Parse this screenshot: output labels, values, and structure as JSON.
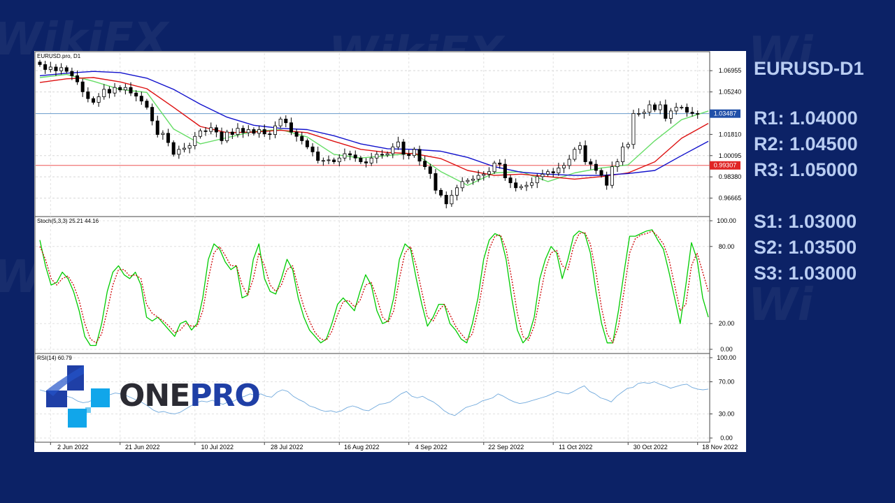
{
  "app": {
    "symbol_title": "EURUSD-D1",
    "brand": {
      "part1": "ONE",
      "part2": "PRO"
    }
  },
  "levels": {
    "R1": "R1: 1.04000",
    "R2": "R2: 1.04500",
    "R3": "R3: 1.05000",
    "S1": "S1: 1.03000",
    "S2": "S2: 1.03500",
    "S3": "S3: 1.03000"
  },
  "colors": {
    "background": "#0c2266",
    "bull_candle": "#ffffff",
    "bear_candle": "#000000",
    "ma_fast": "#66dd66",
    "ma_mid": "#dd1111",
    "ma_slow": "#1111cc",
    "stoch_main": "#00cc00",
    "stoch_signal": "#cc0000",
    "rsi": "#6fa8dc",
    "price_line": "#6699cc",
    "support_line": "#ee5555"
  },
  "chart_data": [
    {
      "type": "candlestick",
      "title": "EURUSD.pro, D1",
      "price_ticks": [
        "1.06955",
        "1.05240",
        "1.01810",
        "1.00095",
        "0.98380",
        "0.96665"
      ],
      "ylim": [
        0.954,
        1.0815
      ],
      "current_price": {
        "value": 1.03487,
        "label": "1.03487"
      },
      "horizontal_line": {
        "value": 0.99307,
        "label": "0.99307"
      },
      "date_ticks": [
        "2 Jun 2022",
        "21 Jun 2022",
        "10 Jul 2022",
        "28 Jul 2022",
        "16 Aug 2022",
        "4 Sep 2022",
        "22 Sep 2022",
        "11 Oct 2022",
        "30 Oct 2022",
        "18 Nov 2022"
      ],
      "date_tick_positions": [
        2,
        15,
        29,
        42,
        56,
        69,
        83,
        96,
        110,
        123
      ],
      "closes": [
        1.0745,
        1.0705,
        1.0725,
        1.0695,
        1.072,
        1.069,
        1.0655,
        1.0605,
        1.0525,
        1.047,
        1.044,
        1.0485,
        1.0545,
        1.0515,
        1.056,
        1.054,
        1.056,
        1.0515,
        1.049,
        1.045,
        1.04,
        1.029,
        1.018,
        1.019,
        1.0115,
        1.002,
        1.006,
        1.007,
        1.009,
        1.0165,
        1.021,
        1.0205,
        1.0235,
        1.02,
        1.013,
        1.02,
        1.018,
        1.023,
        1.0195,
        1.022,
        1.019,
        1.022,
        1.0185,
        1.018,
        1.025,
        1.0305,
        1.0275,
        1.02,
        1.0165,
        1.013,
        1.008,
        1.004,
        0.997,
        0.997,
        0.9975,
        0.996,
        0.999,
        1.0025,
        1.0015,
        0.999,
        0.996,
        0.995,
        0.999,
        1.002,
        1.0015,
        1.0025,
        1.008,
        1.012,
        1.002,
        1.001,
        1.006,
        0.9965,
        0.992,
        0.9865,
        0.973,
        0.969,
        0.962,
        0.969,
        0.975,
        0.98,
        0.981,
        0.982,
        0.985,
        0.986,
        0.988,
        0.995,
        0.994,
        0.983,
        0.979,
        0.975,
        0.976,
        0.977,
        0.979,
        0.984,
        0.986,
        0.988,
        0.987,
        0.991,
        0.993,
        0.998,
        1.006,
        1.009,
        0.996,
        0.994,
        0.989,
        0.985,
        0.977,
        0.992,
        0.996,
        1.008,
        1.01,
        1.035,
        1.035,
        1.036,
        1.042,
        1.038,
        1.042,
        1.031,
        1.037,
        1.04,
        1.04,
        1.036,
        1.035,
        1.0349
      ],
      "moving_averages": [
        {
          "color": "#66dd66",
          "points": [
            [
              0,
              1.064
            ],
            [
              5,
              1.0665
            ],
            [
              10,
              1.061
            ],
            [
              15,
              1.0545
            ],
            [
              20,
              1.052
            ],
            [
              25,
              1.0225
            ],
            [
              30,
              1.0105
            ],
            [
              35,
              1.0155
            ],
            [
              40,
              1.0205
            ],
            [
              45,
              1.022
            ],
            [
              50,
              1.016
            ],
            [
              55,
              1.002
            ],
            [
              60,
              0.999
            ],
            [
              65,
              1.001
            ],
            [
              70,
              1.003
            ],
            [
              75,
              0.988
            ],
            [
              80,
              0.977
            ],
            [
              85,
              0.987
            ],
            [
              90,
              0.988
            ],
            [
              95,
              0.98
            ],
            [
              100,
              0.987
            ],
            [
              105,
              0.991
            ],
            [
              110,
              0.9935
            ],
            [
              115,
              1.013
            ],
            [
              120,
              1.03
            ],
            [
              125,
              1.037
            ]
          ]
        },
        {
          "color": "#dd1111",
          "points": [
            [
              0,
              1.06
            ],
            [
              5,
              1.063
            ],
            [
              10,
              1.064
            ],
            [
              15,
              1.0605
            ],
            [
              20,
              1.055
            ],
            [
              25,
              1.04
            ],
            [
              30,
              1.0245
            ],
            [
              35,
              1.0195
            ],
            [
              40,
              1.02
            ],
            [
              45,
              1.0215
            ],
            [
              50,
              1.0195
            ],
            [
              55,
              1.0125
            ],
            [
              60,
              1.006
            ],
            [
              65,
              1.0035
            ],
            [
              70,
              1.0025
            ],
            [
              75,
              0.9985
            ],
            [
              80,
              0.989
            ],
            [
              85,
              0.985
            ],
            [
              90,
              0.986
            ],
            [
              95,
              0.984
            ],
            [
              100,
              0.982
            ],
            [
              105,
              0.984
            ],
            [
              110,
              0.987
            ],
            [
              115,
              0.996
            ],
            [
              120,
              1.015
            ],
            [
              125,
              1.027
            ]
          ]
        },
        {
          "color": "#1111cc",
          "points": [
            [
              0,
              1.0655
            ],
            [
              5,
              1.0675
            ],
            [
              10,
              1.069
            ],
            [
              15,
              1.068
            ],
            [
              20,
              1.0635
            ],
            [
              25,
              1.0545
            ],
            [
              30,
              1.0425
            ],
            [
              35,
              1.032
            ],
            [
              40,
              1.0255
            ],
            [
              45,
              1.023
            ],
            [
              50,
              1.022
            ],
            [
              55,
              1.017
            ],
            [
              60,
              1.0105
            ],
            [
              65,
              1.0065
            ],
            [
              70,
              1.006
            ],
            [
              75,
              1.0045
            ],
            [
              80,
              0.9995
            ],
            [
              85,
              0.992
            ],
            [
              90,
              0.9875
            ],
            [
              95,
              0.986
            ],
            [
              100,
              0.985
            ],
            [
              105,
              0.985
            ],
            [
              110,
              0.9865
            ],
            [
              115,
              0.989
            ],
            [
              120,
              1.001
            ],
            [
              125,
              1.0125
            ]
          ]
        }
      ]
    },
    {
      "type": "line",
      "title": "Stoch(5,3,3) 25.21 44.16",
      "ylim": [
        0,
        100
      ],
      "y_ticks": [
        "100.00",
        "80.00",
        "20.00",
        "0.00"
      ],
      "series": [
        {
          "color": "#00cc00",
          "values": [
            85,
            65,
            50,
            52,
            60,
            55,
            45,
            30,
            10,
            3,
            3,
            20,
            45,
            60,
            65,
            58,
            55,
            60,
            50,
            25,
            22,
            25,
            20,
            15,
            10,
            20,
            22,
            15,
            20,
            40,
            70,
            82,
            78,
            68,
            62,
            65,
            40,
            42,
            70,
            82,
            55,
            45,
            43,
            55,
            70,
            62,
            40,
            25,
            15,
            10,
            5,
            8,
            20,
            35,
            40,
            35,
            30,
            45,
            58,
            50,
            30,
            20,
            22,
            40,
            70,
            82,
            78,
            55,
            35,
            18,
            25,
            35,
            35,
            20,
            15,
            8,
            5,
            20,
            40,
            70,
            85,
            90,
            88,
            70,
            40,
            15,
            5,
            10,
            25,
            55,
            70,
            80,
            75,
            55,
            70,
            88,
            92,
            90,
            75,
            45,
            20,
            5,
            5,
            30,
            60,
            88,
            88,
            90,
            92,
            93,
            85,
            78,
            60,
            40,
            20,
            50,
            83,
            70,
            40,
            25
          ]
        },
        {
          "color": "#cc0000",
          "values": [
            80,
            70,
            55,
            50,
            55,
            57,
            50,
            38,
            20,
            8,
            5,
            12,
            30,
            50,
            62,
            62,
            57,
            58,
            55,
            35,
            28,
            25,
            22,
            18,
            13,
            15,
            20,
            18,
            18,
            30,
            55,
            75,
            80,
            73,
            65,
            65,
            50,
            42,
            55,
            75,
            65,
            50,
            45,
            50,
            62,
            65,
            48,
            33,
            22,
            13,
            8,
            7,
            14,
            27,
            37,
            38,
            33,
            38,
            50,
            52,
            40,
            25,
            21,
            30,
            55,
            75,
            80,
            65,
            45,
            25,
            22,
            30,
            35,
            27,
            18,
            12,
            7,
            12,
            30,
            55,
            78,
            88,
            89,
            78,
            55,
            28,
            10,
            7,
            18,
            40,
            62,
            75,
            77,
            65,
            62,
            80,
            90,
            91,
            82,
            60,
            32,
            12,
            5,
            18,
            45,
            75,
            86,
            89,
            90,
            92,
            88,
            82,
            70,
            50,
            30,
            35,
            65,
            75,
            60,
            45
          ]
        }
      ]
    },
    {
      "type": "line",
      "title": "RSI(14) 60.79",
      "ylim": [
        0,
        100
      ],
      "y_ticks": [
        "100.00",
        "70.00",
        "30.00",
        "0.00"
      ],
      "series": [
        {
          "color": "#6fa8dc",
          "values": [
            60,
            58,
            55,
            57,
            54,
            52,
            50,
            46,
            44,
            45,
            48,
            52,
            55,
            54,
            56,
            55,
            53,
            50,
            47,
            44,
            40,
            35,
            32,
            33,
            31,
            30,
            32,
            36,
            40,
            44,
            46,
            45,
            47,
            44,
            42,
            45,
            46,
            50,
            52,
            55,
            53,
            55,
            52,
            51,
            57,
            60,
            58,
            52,
            48,
            45,
            40,
            38,
            35,
            33,
            34,
            32,
            34,
            38,
            40,
            38,
            35,
            34,
            38,
            42,
            43,
            45,
            50,
            55,
            58,
            52,
            50,
            52,
            48,
            45,
            40,
            34,
            30,
            28,
            33,
            38,
            40,
            42,
            46,
            48,
            50,
            55,
            52,
            48,
            45,
            43,
            44,
            46,
            48,
            50,
            52,
            55,
            58,
            56,
            55,
            58,
            62,
            65,
            58,
            55,
            50,
            48,
            45,
            52,
            57,
            62,
            63,
            68,
            69,
            68,
            70,
            67,
            65,
            62,
            64,
            66,
            67,
            63,
            61,
            60,
            61
          ]
        }
      ]
    }
  ]
}
